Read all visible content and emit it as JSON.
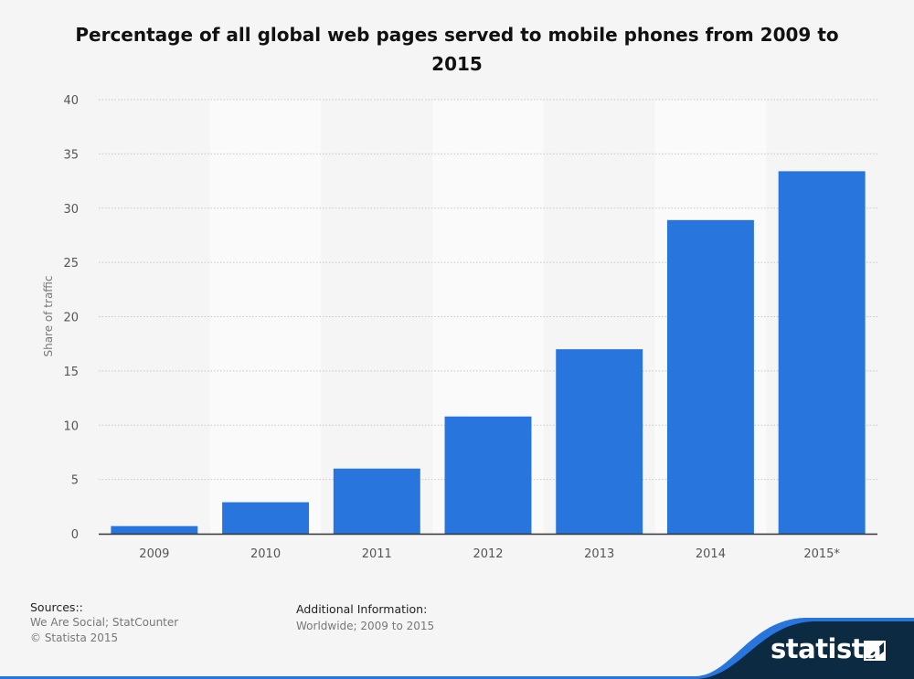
{
  "chart_data": {
    "type": "bar",
    "title": "Percentage of all global web pages served to mobile phones from 2009 to 2015",
    "ylabel": "Share of traffic",
    "xlabel": "",
    "categories": [
      "2009",
      "2010",
      "2011",
      "2012",
      "2013",
      "2014",
      "2015*"
    ],
    "values": [
      0.7,
      2.9,
      6.0,
      10.8,
      17.0,
      28.9,
      33.4
    ],
    "ylim": [
      0,
      40
    ],
    "yticks": [
      0,
      5,
      10,
      15,
      20,
      25,
      30,
      35,
      40
    ],
    "grid": true,
    "bar_color": "#2876dd"
  },
  "footer": {
    "sources_label": "Sources::",
    "sources_line1": "We Are Social; StatCounter",
    "sources_line2": "© Statista 2015",
    "info_label": "Additional Information:",
    "info_text": "Worldwide; 2009 to 2015"
  },
  "brand": {
    "name": "statista",
    "accent": "#2876dd",
    "dark": "#0d2a43"
  }
}
